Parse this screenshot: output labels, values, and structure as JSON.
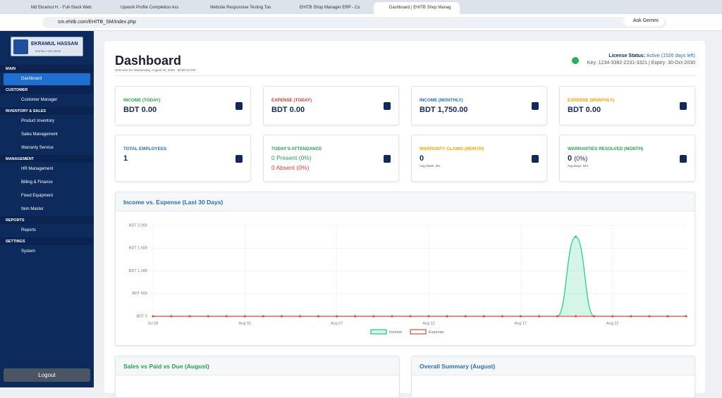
{
  "browser": {
    "tabs": [
      "Md Ekramul H. - Full-Stack Web",
      "Upwork Profile Completion Ass",
      "Website Responsive Testing Too",
      "EHITB Shop Manager ERP - Co",
      "Dashboard | EHITB Shop Manag"
    ],
    "url": "sm.ehitb.com/EHITB_SM/index.php",
    "assistant": "Ask Gemini"
  },
  "sidebar": {
    "brand": "EKRAMUL HASSAN",
    "tagline": "DIGITALLY WE GROW",
    "sections": [
      {
        "title": "MAIN",
        "items": [
          "Dashboard"
        ]
      },
      {
        "title": "CUSTOMER",
        "items": [
          "Customer Manager"
        ]
      },
      {
        "title": "INVENTORY & SALES",
        "items": [
          "Product Inventory",
          "Sales Management",
          "Warranty Service"
        ]
      },
      {
        "title": "MANAGEMENT",
        "items": [
          "HR Management",
          "Billing & Finance",
          "Fixed Equipment",
          "Item Master"
        ]
      },
      {
        "title": "REPORTS",
        "items": [
          "Reports"
        ]
      },
      {
        "title": "SETTINGS",
        "items": [
          "System"
        ]
      }
    ],
    "logout": "Logout"
  },
  "header": {
    "title": "Dashboard",
    "subtitle": "Overview for Wednesday, August 20, 2025",
    "time": "08:50:23 PM",
    "license_label": "License Status:",
    "license_status": "Active (1526 days left)",
    "key": "Key: 1234-3382-2231-3321",
    "expiry": "Expiry: 30-Oct-2030"
  },
  "cards": [
    {
      "label": "INCOME (TODAY)",
      "value": "BDT 0.00"
    },
    {
      "label": "EXPENSE (TODAY)",
      "value": "BDT 0.00"
    },
    {
      "label": "INCOME (MONTHLY)",
      "value": "BDT 1,750.00"
    },
    {
      "label": "EXPENSE (MONTHLY)",
      "value": "BDT 0.00"
    },
    {
      "label": "TOTAL EMPLOYEES",
      "value": "1"
    },
    {
      "label": "TODAY'S ATTENDANCE",
      "value": "0 Present (0%)",
      "value2": "0 Absent (0%)"
    },
    {
      "label": "WARRANTY CLAIMS (MONTH)",
      "value": "0",
      "note": "Avg Claim: 0%"
    },
    {
      "label": "WARRANTIES RESOLVED (MONTH)",
      "value": "0",
      "value2": "(0%)",
      "note": "Avg Days: N/A"
    }
  ],
  "chart_data": {
    "type": "line",
    "title": "Income vs. Expense (Last 30 Days)",
    "categories": [
      "Jul 28",
      null,
      null,
      null,
      null,
      "Aug 02",
      null,
      null,
      null,
      null,
      "Aug 07",
      null,
      null,
      null,
      null,
      "Aug 12",
      null,
      null,
      null,
      null,
      "Aug 17",
      null,
      null,
      null,
      null,
      "Aug 22",
      null,
      null,
      null,
      null
    ],
    "series": [
      {
        "name": "Income",
        "color": "#2ecc8a",
        "fill": "rgba(46,204,138,0.2)",
        "values": [
          0,
          0,
          0,
          0,
          0,
          0,
          0,
          0,
          0,
          0,
          0,
          0,
          0,
          0,
          0,
          0,
          0,
          0,
          0,
          0,
          0,
          0,
          0,
          1750,
          0,
          0,
          0,
          0,
          0,
          0
        ]
      },
      {
        "name": "Expense",
        "color": "#e0574a",
        "values": [
          0,
          0,
          0,
          0,
          0,
          0,
          0,
          0,
          0,
          0,
          0,
          0,
          0,
          0,
          0,
          0,
          0,
          0,
          0,
          0,
          0,
          0,
          0,
          0,
          0,
          0,
          0,
          0,
          0,
          0
        ]
      }
    ],
    "ylim": [
      0,
      2000
    ],
    "yticks": [
      {
        "value": 0,
        "label": "BDT 0"
      },
      {
        "value": 500,
        "label": "BDT 500"
      },
      {
        "value": 1000,
        "label": "BDT 1,000"
      },
      {
        "value": 1500,
        "label": "BDT 1,500"
      },
      {
        "value": 2000,
        "label": "BDT 2,000"
      }
    ],
    "grid": true,
    "legend": "bottom"
  },
  "panels": [
    "Sales vs Paid vs Due (August)",
    "Overall Summary (August)"
  ]
}
